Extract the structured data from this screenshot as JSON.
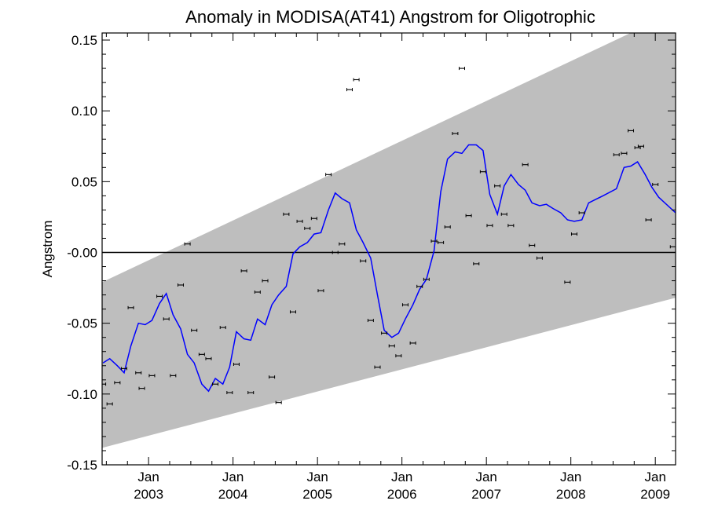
{
  "chart_data": {
    "type": "line",
    "title": "Anomaly in MODISA(AT41) Angstrom for Oligotrophic",
    "xlabel": "",
    "ylabel": "Angstrom",
    "xlim": [
      2002.45,
      2009.24
    ],
    "ylim": [
      -0.15,
      0.155
    ],
    "y_ticks": [
      -0.15,
      -0.1,
      -0.05,
      0.0,
      0.05,
      0.1,
      0.15
    ],
    "y_tick_labels": [
      "-0.15",
      "-0.10",
      "-0.05",
      "-0.00",
      "0.05",
      "0.10",
      "0.15"
    ],
    "x_ticks": [
      {
        "x": 2003.0,
        "month": "Jan",
        "year": "2003"
      },
      {
        "x": 2004.0,
        "month": "Jan",
        "year": "2004"
      },
      {
        "x": 2005.0,
        "month": "Jan",
        "year": "2005"
      },
      {
        "x": 2006.0,
        "month": "Jan",
        "year": "2006"
      },
      {
        "x": 2007.0,
        "month": "Jan",
        "year": "2007"
      },
      {
        "x": 2008.0,
        "month": "Jan",
        "year": "2008"
      },
      {
        "x": 2009.0,
        "month": "Jan",
        "year": "2009"
      }
    ],
    "zero_line": 0.0,
    "band": {
      "lower": [
        [
          2002.45,
          -0.138
        ],
        [
          2009.24,
          -0.032
        ]
      ],
      "upper": [
        [
          2002.45,
          -0.021
        ],
        [
          2009.24,
          0.17
        ]
      ],
      "color": "#bebebe"
    },
    "series": [
      {
        "kind": "points",
        "color": "#000000",
        "points": [
          [
            2002.46,
            -0.093
          ],
          [
            2002.54,
            -0.107
          ],
          [
            2002.63,
            -0.092
          ],
          [
            2002.71,
            -0.082
          ],
          [
            2002.79,
            -0.039
          ],
          [
            2002.88,
            -0.085
          ],
          [
            2002.92,
            -0.096
          ],
          [
            2003.04,
            -0.087
          ],
          [
            2003.13,
            -0.031
          ],
          [
            2003.21,
            -0.047
          ],
          [
            2003.29,
            -0.087
          ],
          [
            2003.38,
            -0.023
          ],
          [
            2003.46,
            0.006
          ],
          [
            2003.54,
            -0.055
          ],
          [
            2003.63,
            -0.072
          ],
          [
            2003.71,
            -0.075
          ],
          [
            2003.79,
            -0.093
          ],
          [
            2003.88,
            -0.053
          ],
          [
            2003.96,
            -0.099
          ],
          [
            2004.04,
            -0.079
          ],
          [
            2004.13,
            -0.013
          ],
          [
            2004.21,
            -0.099
          ],
          [
            2004.29,
            -0.028
          ],
          [
            2004.38,
            -0.02
          ],
          [
            2004.46,
            -0.088
          ],
          [
            2004.54,
            -0.106
          ],
          [
            2004.63,
            0.027
          ],
          [
            2004.71,
            -0.042
          ],
          [
            2004.79,
            0.022
          ],
          [
            2004.88,
            0.017
          ],
          [
            2004.96,
            0.024
          ],
          [
            2005.04,
            -0.027
          ],
          [
            2005.13,
            0.055
          ],
          [
            2005.21,
            0.0
          ],
          [
            2005.29,
            0.006
          ],
          [
            2005.38,
            0.115
          ],
          [
            2005.46,
            0.122
          ],
          [
            2005.54,
            -0.006
          ],
          [
            2005.63,
            -0.048
          ],
          [
            2005.71,
            -0.081
          ],
          [
            2005.79,
            -0.057
          ],
          [
            2005.88,
            -0.066
          ],
          [
            2005.96,
            -0.073
          ],
          [
            2006.04,
            -0.037
          ],
          [
            2006.13,
            -0.064
          ],
          [
            2006.21,
            -0.024
          ],
          [
            2006.29,
            -0.019
          ],
          [
            2006.38,
            0.008
          ],
          [
            2006.46,
            0.007
          ],
          [
            2006.54,
            0.018
          ],
          [
            2006.63,
            0.084
          ],
          [
            2006.71,
            0.13
          ],
          [
            2006.79,
            0.026
          ],
          [
            2006.88,
            -0.008
          ],
          [
            2006.96,
            0.057
          ],
          [
            2007.04,
            0.019
          ],
          [
            2007.13,
            0.047
          ],
          [
            2007.21,
            0.027
          ],
          [
            2007.29,
            0.019
          ],
          [
            2007.46,
            0.062
          ],
          [
            2007.54,
            0.005
          ],
          [
            2007.63,
            -0.004
          ],
          [
            2007.96,
            -0.021
          ],
          [
            2008.04,
            0.013
          ],
          [
            2008.13,
            0.028
          ],
          [
            2008.54,
            0.069
          ],
          [
            2008.63,
            0.07
          ],
          [
            2008.71,
            0.086
          ],
          [
            2008.79,
            0.074
          ],
          [
            2008.83,
            0.075
          ],
          [
            2008.92,
            0.023
          ],
          [
            2009.0,
            0.048
          ],
          [
            2009.21,
            0.004
          ]
        ]
      },
      {
        "kind": "line",
        "color": "#0000ff",
        "points": [
          [
            2002.46,
            -0.078
          ],
          [
            2002.54,
            -0.075
          ],
          [
            2002.63,
            -0.08
          ],
          [
            2002.71,
            -0.085
          ],
          [
            2002.79,
            -0.066
          ],
          [
            2002.88,
            -0.05
          ],
          [
            2002.96,
            -0.051
          ],
          [
            2003.04,
            -0.048
          ],
          [
            2003.13,
            -0.036
          ],
          [
            2003.21,
            -0.029
          ],
          [
            2003.29,
            -0.044
          ],
          [
            2003.38,
            -0.054
          ],
          [
            2003.46,
            -0.072
          ],
          [
            2003.54,
            -0.078
          ],
          [
            2003.63,
            -0.093
          ],
          [
            2003.71,
            -0.098
          ],
          [
            2003.79,
            -0.089
          ],
          [
            2003.88,
            -0.093
          ],
          [
            2003.96,
            -0.081
          ],
          [
            2004.04,
            -0.056
          ],
          [
            2004.13,
            -0.061
          ],
          [
            2004.21,
            -0.062
          ],
          [
            2004.29,
            -0.047
          ],
          [
            2004.38,
            -0.051
          ],
          [
            2004.46,
            -0.037
          ],
          [
            2004.54,
            -0.03
          ],
          [
            2004.63,
            -0.024
          ],
          [
            2004.71,
            -0.001
          ],
          [
            2004.79,
            0.004
          ],
          [
            2004.88,
            0.007
          ],
          [
            2004.96,
            0.013
          ],
          [
            2005.04,
            0.014
          ],
          [
            2005.13,
            0.03
          ],
          [
            2005.21,
            0.042
          ],
          [
            2005.29,
            0.038
          ],
          [
            2005.38,
            0.035
          ],
          [
            2005.46,
            0.016
          ],
          [
            2005.54,
            0.007
          ],
          [
            2005.63,
            -0.004
          ],
          [
            2005.71,
            -0.03
          ],
          [
            2005.79,
            -0.055
          ],
          [
            2005.88,
            -0.06
          ],
          [
            2005.96,
            -0.057
          ],
          [
            2006.04,
            -0.047
          ],
          [
            2006.13,
            -0.037
          ],
          [
            2006.21,
            -0.026
          ],
          [
            2006.29,
            -0.019
          ],
          [
            2006.38,
            0.001
          ],
          [
            2006.46,
            0.043
          ],
          [
            2006.54,
            0.066
          ],
          [
            2006.63,
            0.071
          ],
          [
            2006.71,
            0.07
          ],
          [
            2006.79,
            0.076
          ],
          [
            2006.88,
            0.076
          ],
          [
            2006.96,
            0.072
          ],
          [
            2007.04,
            0.041
          ],
          [
            2007.13,
            0.027
          ],
          [
            2007.21,
            0.047
          ],
          [
            2007.29,
            0.055
          ],
          [
            2007.38,
            0.048
          ],
          [
            2007.46,
            0.044
          ],
          [
            2007.54,
            0.035
          ],
          [
            2007.63,
            0.033
          ],
          [
            2007.71,
            0.034
          ],
          [
            2007.79,
            0.031
          ],
          [
            2007.88,
            0.028
          ],
          [
            2007.96,
            0.023
          ],
          [
            2008.04,
            0.022
          ],
          [
            2008.13,
            0.023
          ],
          [
            2008.21,
            0.035
          ],
          [
            2008.38,
            0.04
          ],
          [
            2008.54,
            0.045
          ],
          [
            2008.63,
            0.06
          ],
          [
            2008.71,
            0.061
          ],
          [
            2008.79,
            0.064
          ],
          [
            2008.88,
            0.055
          ],
          [
            2008.96,
            0.046
          ],
          [
            2009.04,
            0.039
          ],
          [
            2009.24,
            0.028
          ]
        ]
      }
    ]
  }
}
